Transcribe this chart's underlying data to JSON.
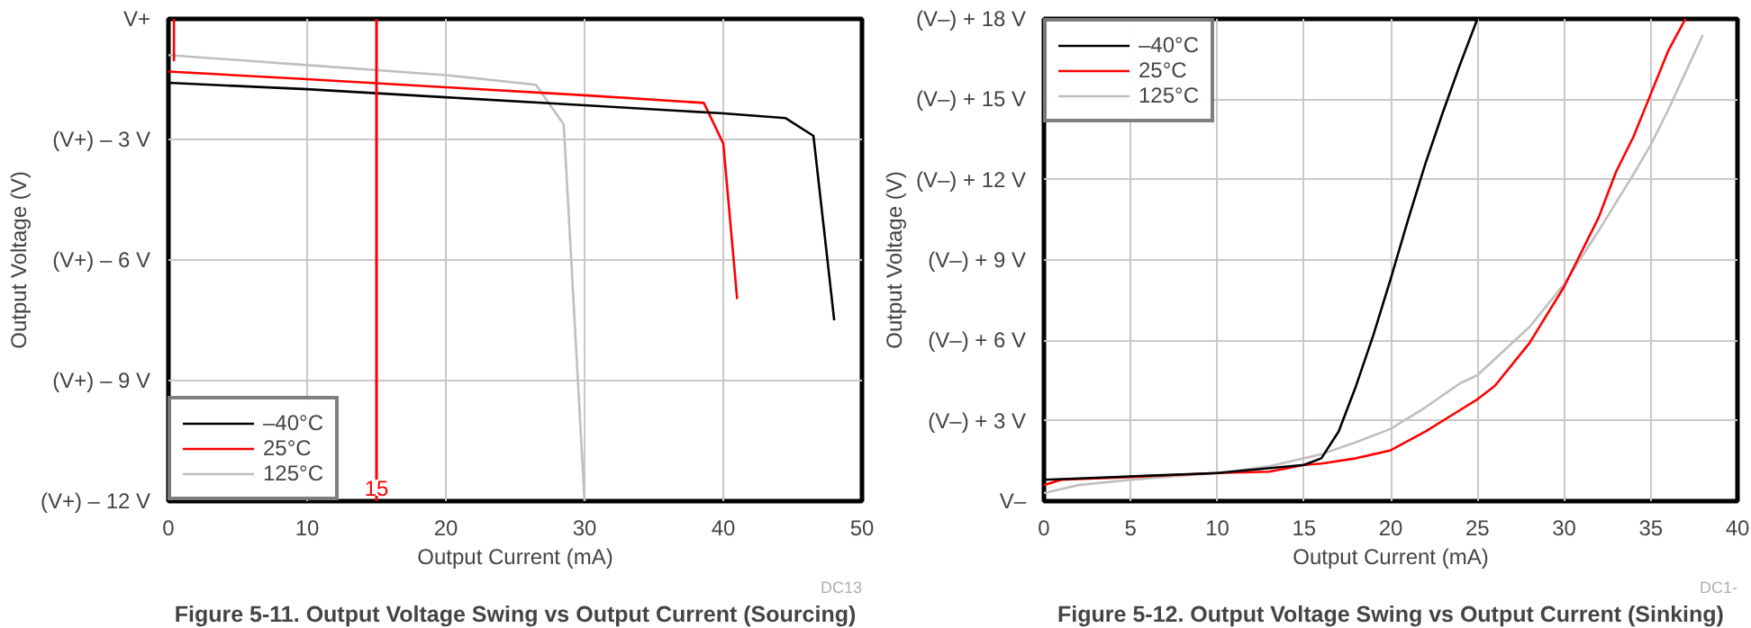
{
  "chart_data": [
    {
      "type": "line",
      "title": "Figure 5-11. Output Voltage Swing vs Output Current (Sourcing)",
      "xlabel": "Output Current (mA)",
      "ylabel": "Output Voltage (V)",
      "annotations": [
        "DC13"
      ],
      "xlim": [
        0,
        50
      ],
      "xticks": [
        0,
        10,
        20,
        30,
        40,
        50
      ],
      "ylim": [
        -12,
        0
      ],
      "yticks": [
        {
          "value": 0,
          "label": "V+"
        },
        {
          "value": -3,
          "label": "(V+) – 3 V"
        },
        {
          "value": -6,
          "label": "(V+) – 6 V"
        },
        {
          "value": -9,
          "label": "(V+) – 9 V"
        },
        {
          "value": -12,
          "label": "(V+) – 12 V"
        }
      ],
      "grid": true,
      "legend": "bottom left",
      "ref_lines": [
        {
          "axis": "x",
          "value": 15,
          "label": "15",
          "color": "#ff0000"
        }
      ],
      "series": [
        {
          "name": "–40°C",
          "color": "#000000",
          "x": [
            0,
            10,
            20,
            30,
            40,
            44.5,
            46.5,
            48
          ],
          "values": [
            -1.59,
            -1.75,
            -1.95,
            -2.15,
            -2.35,
            -2.47,
            -2.91,
            -7.5
          ]
        },
        {
          "name": "25°C",
          "color": "#ff0000",
          "x": [
            0.4,
            0.4,
            0.2,
            0,
            10,
            20,
            30,
            38.6,
            40,
            41
          ],
          "values": [
            0,
            -1.05,
            null,
            -1.31,
            -1.5,
            -1.7,
            -1.9,
            -2.09,
            -3.1,
            -6.97
          ]
        },
        {
          "name": "125°C",
          "color": "#bfbfbf",
          "x": [
            0,
            10,
            20,
            26.5,
            28.5,
            30
          ],
          "values": [
            -0.9,
            -1.15,
            -1.4,
            -1.64,
            -2.63,
            -12
          ]
        }
      ]
    },
    {
      "type": "line",
      "title": "Figure 5-12. Output Voltage Swing vs Output Current (Sinking)",
      "xlabel": "Output Current (mA)",
      "ylabel": "Output Voltage (V)",
      "annotations": [
        "DC1-"
      ],
      "xlim": [
        0,
        40
      ],
      "xticks": [
        0,
        5,
        10,
        15,
        20,
        25,
        30,
        35,
        40
      ],
      "ylim": [
        0,
        18
      ],
      "yticks": [
        {
          "value": 0,
          "label": "V–"
        },
        {
          "value": 3,
          "label": "(V–) + 3 V"
        },
        {
          "value": 6,
          "label": "(V–) + 6 V"
        },
        {
          "value": 9,
          "label": "(V–) + 9 V"
        },
        {
          "value": 12,
          "label": "(V–) + 12 V"
        },
        {
          "value": 15,
          "label": "(V–) + 15 V"
        },
        {
          "value": 18,
          "label": "(V–) + 18 V"
        }
      ],
      "grid": true,
      "legend": "top left",
      "series": [
        {
          "name": "–40°C",
          "color": "#000000",
          "x": [
            0,
            4,
            8,
            10,
            15,
            16,
            17,
            18,
            19,
            20,
            21,
            22,
            23,
            24,
            25
          ],
          "values": [
            0.8,
            0.9,
            1.0,
            1.05,
            1.35,
            1.6,
            2.6,
            4.3,
            6.2,
            8.3,
            10.5,
            12.6,
            14.5,
            16.3,
            18
          ]
        },
        {
          "name": "25°C",
          "color": "#ff0000",
          "x": [
            0,
            1,
            5,
            10,
            13,
            15,
            16,
            18,
            20,
            22,
            24,
            25,
            26,
            28,
            30,
            32,
            33,
            34,
            35,
            36,
            37
          ],
          "values": [
            0.6,
            0.8,
            0.9,
            1.05,
            1.1,
            1.35,
            1.4,
            1.6,
            1.9,
            2.6,
            3.4,
            3.8,
            4.3,
            5.9,
            8.0,
            10.6,
            12.3,
            13.6,
            15.2,
            16.8,
            18
          ]
        },
        {
          "name": "125°C",
          "color": "#bfbfbf",
          "x": [
            0,
            2,
            5,
            10,
            13,
            15,
            16,
            18,
            20,
            22,
            24,
            25,
            28,
            30,
            32,
            34,
            35,
            36,
            38
          ],
          "values": [
            0.3,
            0.6,
            0.8,
            1.05,
            1.3,
            1.6,
            1.75,
            2.2,
            2.7,
            3.5,
            4.4,
            4.7,
            6.5,
            8.1,
            10.1,
            12.2,
            13.3,
            14.6,
            17.4
          ]
        }
      ]
    }
  ]
}
